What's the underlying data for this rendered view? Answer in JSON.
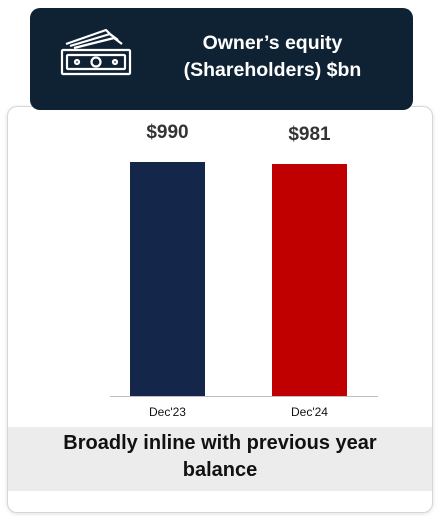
{
  "chart_data": {
    "type": "bar",
    "title": "Owner’s equity (Shareholders) $bn",
    "categories": [
      "Dec'23",
      "Dec'24"
    ],
    "values": [
      990,
      981
    ],
    "value_labels": [
      "$990",
      "$981"
    ],
    "colors": [
      "#14264a",
      "#c00000"
    ],
    "caption": "Broadly inline with previous year balance"
  }
}
